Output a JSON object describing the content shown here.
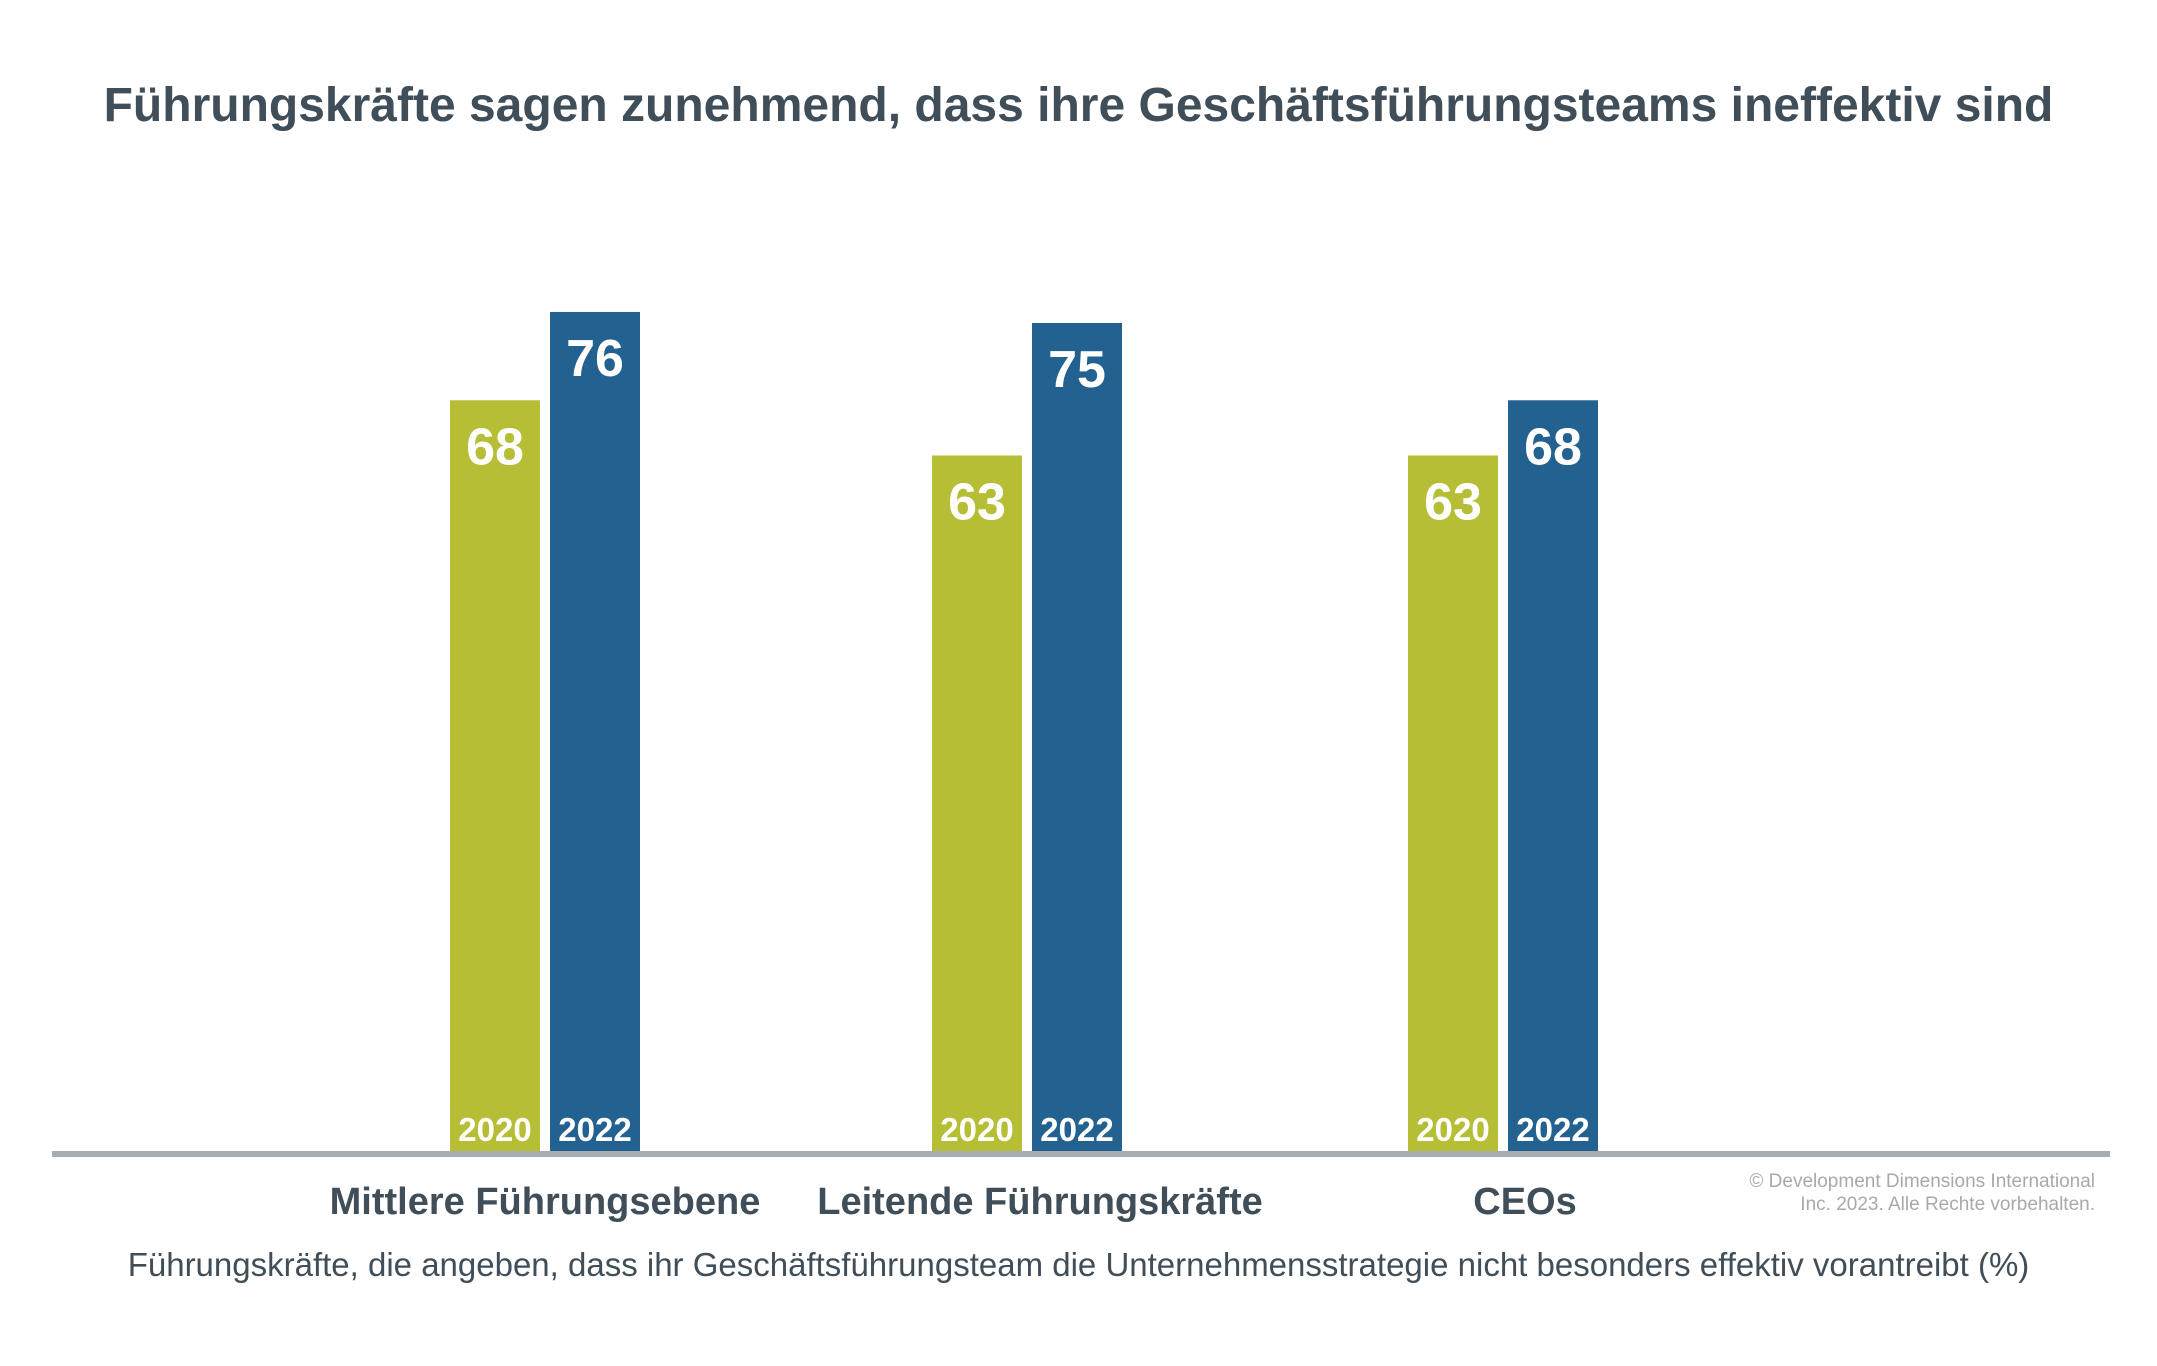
{
  "chart_data": {
    "type": "bar",
    "title": "Führungskräfte sagen zunehmend, dass ihre Geschäftsführungsteams ineffektiv sind",
    "subtitle": "Führungskräfte, die angeben, dass ihr Geschäftsführungsteam die Unternehmensstrategie nicht besonders effektiv vorantreibt (%)",
    "categories": [
      "Mittlere Führungsebene",
      "Leitende Führungskräfte",
      "CEOs"
    ],
    "series": [
      {
        "name": "2020",
        "color": "#b5be35",
        "values": [
          68,
          63,
          63
        ]
      },
      {
        "name": "2022",
        "color": "#236191",
        "values": [
          76,
          75,
          68
        ]
      }
    ],
    "ylim": [
      0,
      100
    ],
    "grid": false,
    "legend": "year labels inside bar bases",
    "baseline_color": "#a7acb3"
  },
  "copyright": {
    "line1": "© Development Dimensions International",
    "line2": "Inc. 2023. Alle Rechte vorbehalten."
  }
}
